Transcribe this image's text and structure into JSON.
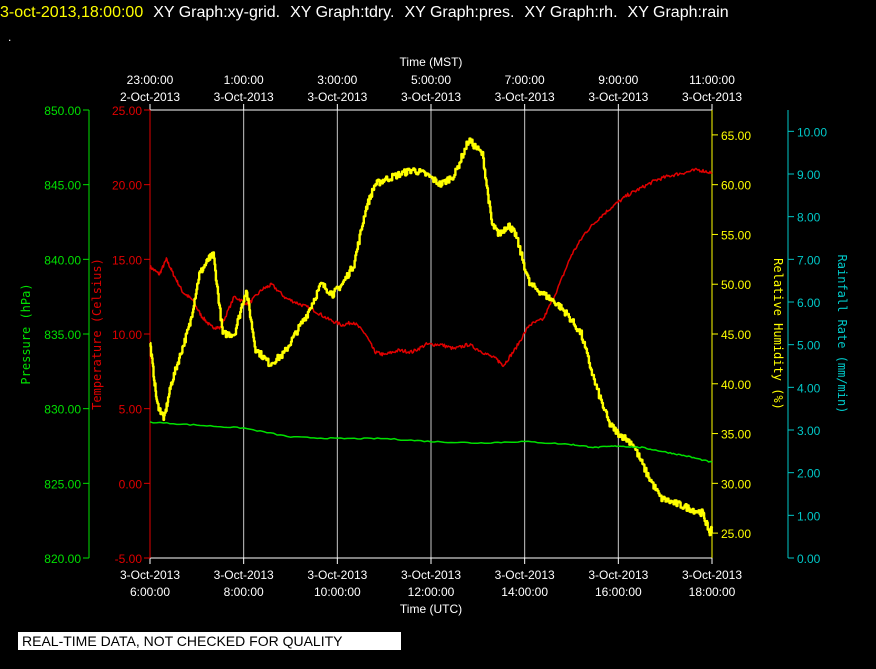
{
  "header": {
    "timestamp": "3-oct-2013,18:00:00",
    "graphs": [
      "XY Graph:xy-grid.",
      "XY Graph:tdry.",
      "XY Graph:pres.",
      "XY Graph:rh.",
      "XY Graph:rain"
    ],
    "dot": "."
  },
  "footer": {
    "note": "REAL-TIME DATA, NOT CHECKED FOR QUALITY"
  },
  "chart_data": {
    "type": "line",
    "grid": "vertical",
    "colors": {
      "pressure": "#00e000",
      "temperature": "#e00000",
      "humidity": "#ffff00",
      "rain": "#00c8c8",
      "grid": "#ffffff",
      "axis_text": "#ffffff"
    },
    "top_axis": {
      "label": "Time (MST)",
      "ticks": [
        {
          "hour": 6,
          "time": "23:00:00",
          "date": "2-Oct-2013"
        },
        {
          "hour": 8,
          "time": "1:00:00",
          "date": "3-Oct-2013"
        },
        {
          "hour": 10,
          "time": "3:00:00",
          "date": "3-Oct-2013"
        },
        {
          "hour": 12,
          "time": "5:00:00",
          "date": "3-Oct-2013"
        },
        {
          "hour": 14,
          "time": "7:00:00",
          "date": "3-Oct-2013"
        },
        {
          "hour": 16,
          "time": "9:00:00",
          "date": "3-Oct-2013"
        },
        {
          "hour": 18,
          "time": "11:00:00",
          "date": "3-Oct-2013"
        }
      ]
    },
    "bottom_axis": {
      "label": "Time (UTC)",
      "range_hours": [
        6,
        18
      ],
      "ticks": [
        {
          "hour": 6,
          "date": "3-Oct-2013",
          "time": "6:00:00"
        },
        {
          "hour": 8,
          "date": "3-Oct-2013",
          "time": "8:00:00"
        },
        {
          "hour": 10,
          "date": "3-Oct-2013",
          "time": "10:00:00"
        },
        {
          "hour": 12,
          "date": "3-Oct-2013",
          "time": "12:00:00"
        },
        {
          "hour": 14,
          "date": "3-Oct-2013",
          "time": "14:00:00"
        },
        {
          "hour": 16,
          "date": "3-Oct-2013",
          "time": "16:00:00"
        },
        {
          "hour": 18,
          "date": "3-Oct-2013",
          "time": "18:00:00"
        }
      ]
    },
    "axes": {
      "pressure": {
        "label": "Pressure (hPa)",
        "range": [
          820,
          850
        ],
        "ticks": [
          "820.00",
          "825.00",
          "830.00",
          "835.00",
          "840.00",
          "845.00",
          "850.00"
        ]
      },
      "temperature": {
        "label": "Temperature (Celsius)",
        "range": [
          -5,
          25
        ],
        "ticks": [
          "-5.00",
          "0.00",
          "5.00",
          "10.00",
          "15.00",
          "20.00",
          "25.00"
        ]
      },
      "humidity": {
        "label": "Relative Humidity (%)",
        "range": [
          22.5,
          67.5
        ],
        "ticks": [
          "25.00",
          "30.00",
          "35.00",
          "40.00",
          "45.00",
          "50.00",
          "55.00",
          "60.00",
          "65.00"
        ]
      },
      "rain": {
        "label": "Rainfall Rate (mm/min)",
        "range": [
          0,
          10.5
        ],
        "ticks": [
          "0.00",
          "1.00",
          "2.00",
          "3.00",
          "4.00",
          "5.00",
          "6.00",
          "7.00",
          "8.00",
          "9.00",
          "10.00"
        ]
      }
    },
    "series": [
      {
        "name": "Temperature",
        "axis": "temperature",
        "x": [
          6.0,
          6.2,
          6.35,
          6.5,
          6.7,
          6.9,
          7.1,
          7.3,
          7.5,
          7.8,
          8.1,
          8.4,
          8.6,
          8.9,
          9.2,
          9.5,
          9.8,
          10.1,
          10.35,
          10.6,
          10.8,
          11.0,
          11.3,
          11.6,
          11.9,
          12.2,
          12.5,
          12.8,
          13.1,
          13.4,
          13.55,
          13.8,
          14.1,
          14.4,
          14.7,
          15.0,
          15.3,
          15.6,
          15.9,
          16.2,
          16.5,
          16.8,
          17.1,
          17.4,
          17.7,
          18.0
        ],
        "values": [
          14.5,
          14.0,
          15.0,
          14.0,
          12.8,
          12.3,
          11.2,
          10.5,
          10.4,
          12.5,
          12.0,
          13.0,
          13.3,
          12.4,
          12.0,
          11.6,
          11.0,
          10.6,
          10.8,
          10.0,
          8.8,
          8.6,
          8.9,
          8.8,
          9.3,
          9.3,
          9.0,
          9.3,
          8.8,
          8.3,
          7.9,
          9.0,
          10.6,
          11.0,
          13.0,
          15.3,
          16.8,
          17.8,
          18.6,
          19.3,
          19.8,
          20.3,
          20.6,
          20.8,
          21.0,
          20.8
        ]
      },
      {
        "name": "Relative Humidity",
        "axis": "humidity",
        "x": [
          6.0,
          6.15,
          6.3,
          6.45,
          6.65,
          6.85,
          7.05,
          7.25,
          7.35,
          7.55,
          7.8,
          8.05,
          8.25,
          8.55,
          8.85,
          9.1,
          9.35,
          9.65,
          9.9,
          10.1,
          10.35,
          10.6,
          10.8,
          11.0,
          11.3,
          11.6,
          11.9,
          12.2,
          12.5,
          12.8,
          13.1,
          13.3,
          13.45,
          13.65,
          13.8,
          14.1,
          14.4,
          14.7,
          14.9,
          15.2,
          15.5,
          15.8,
          16.0,
          16.3,
          16.6,
          16.9,
          17.2,
          17.5,
          17.8,
          17.95,
          18.0
        ],
        "values": [
          44,
          38,
          36.5,
          40,
          43,
          46,
          51,
          52.5,
          53,
          45,
          45,
          49.5,
          43.5,
          42,
          43,
          45,
          47,
          50,
          49,
          50,
          52,
          57.5,
          60,
          60.5,
          61,
          61.5,
          61,
          60,
          61,
          64.5,
          63,
          56,
          55,
          56,
          55,
          50,
          49,
          48,
          47,
          45,
          40,
          36,
          35,
          34,
          31,
          28.5,
          28,
          27.5,
          27,
          25,
          25.5
        ]
      },
      {
        "name": "Pressure",
        "axis": "pressure",
        "x": [
          6.0,
          7.0,
          8.0,
          9.0,
          10.0,
          11.0,
          12.0,
          13.0,
          14.0,
          15.0,
          15.5,
          16.0,
          16.5,
          17.0,
          17.5,
          18.0
        ],
        "values": [
          829.1,
          828.9,
          828.7,
          828.1,
          828.0,
          828.0,
          827.8,
          827.7,
          827.8,
          827.6,
          827.4,
          827.5,
          827.4,
          827.1,
          826.8,
          826.4
        ]
      }
    ]
  }
}
